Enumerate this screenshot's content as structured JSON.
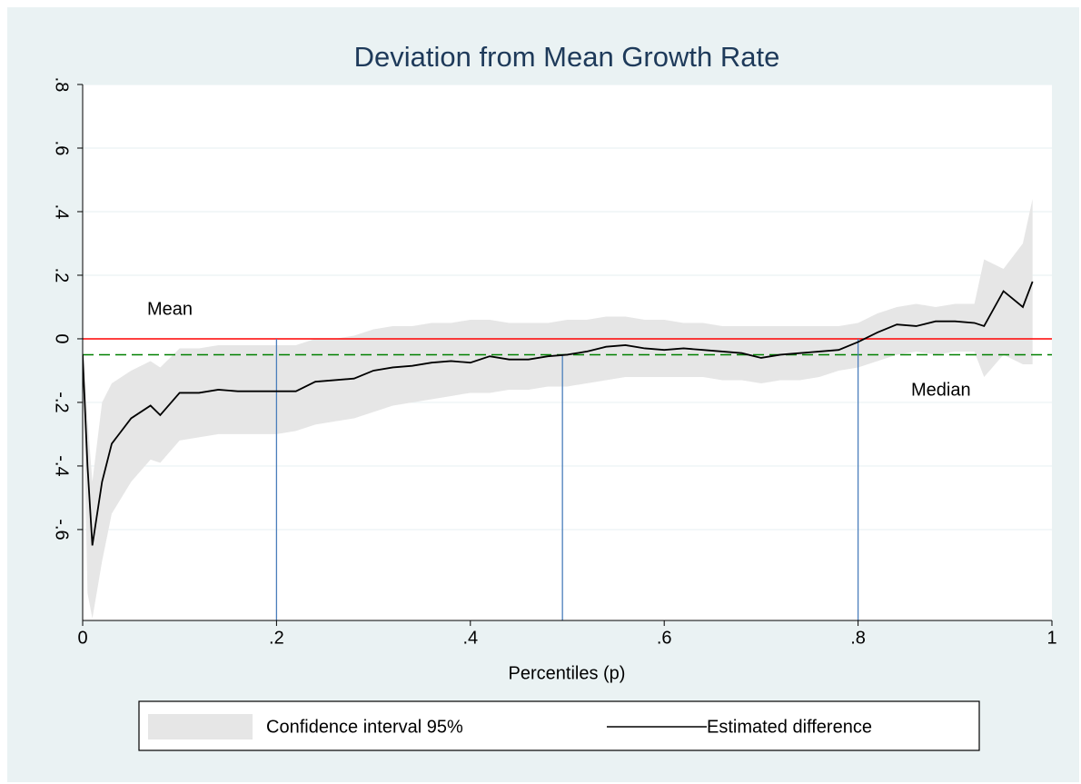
{
  "chart_data": {
    "type": "line",
    "title": "Deviation from Mean Growth Rate",
    "x_label": "Percentiles (p)",
    "xlim": [
      0,
      1
    ],
    "ylim": [
      -0.886,
      0.8
    ],
    "xticks": [
      0,
      {
        "value": 0.2,
        "label": ".2"
      },
      {
        "value": 0.4,
        "label": ".4"
      },
      {
        "value": 0.6,
        "label": ".6"
      },
      {
        "value": 0.8,
        "label": ".8"
      },
      1
    ],
    "yticks": [
      {
        "value": -0.6,
        "label": "-.6"
      },
      {
        "value": -0.4,
        "label": "-.4"
      },
      {
        "value": -0.2,
        "label": "-.2"
      },
      0,
      {
        "value": 0.2,
        "label": ".2"
      },
      {
        "value": 0.4,
        "label": ".4"
      },
      {
        "value": 0.6,
        "label": ".6"
      },
      {
        "value": 0.8,
        "label": ".8"
      }
    ],
    "grid": true,
    "x": [
      0,
      0.005,
      0.01,
      0.02,
      0.03,
      0.05,
      0.07,
      0.08,
      0.1,
      0.12,
      0.14,
      0.16,
      0.18,
      0.2,
      0.22,
      0.24,
      0.26,
      0.28,
      0.3,
      0.32,
      0.34,
      0.36,
      0.38,
      0.4,
      0.42,
      0.44,
      0.46,
      0.48,
      0.5,
      0.52,
      0.54,
      0.56,
      0.58,
      0.6,
      0.62,
      0.64,
      0.66,
      0.68,
      0.7,
      0.72,
      0.74,
      0.76,
      0.78,
      0.8,
      0.82,
      0.84,
      0.86,
      0.88,
      0.9,
      0.92,
      0.93,
      0.95,
      0.97,
      0.98
    ],
    "series": [
      {
        "name": "Confidence interval 95%",
        "type": "area",
        "color": "#e6e6e6",
        "upper": [
          -0.05,
          -0.25,
          -0.45,
          -0.2,
          -0.14,
          -0.1,
          -0.07,
          -0.09,
          -0.03,
          -0.03,
          -0.02,
          -0.02,
          -0.02,
          -0.02,
          -0.02,
          0,
          0,
          0.01,
          0.03,
          0.04,
          0.04,
          0.05,
          0.05,
          0.06,
          0.06,
          0.05,
          0.05,
          0.05,
          0.06,
          0.06,
          0.07,
          0.07,
          0.06,
          0.06,
          0.05,
          0.05,
          0.04,
          0.04,
          0.04,
          0.04,
          0.04,
          0.04,
          0.04,
          0.05,
          0.08,
          0.1,
          0.11,
          0.1,
          0.11,
          0.11,
          0.25,
          0.22,
          0.3,
          0.44
        ],
        "lower": [
          -0.05,
          -0.8,
          -0.88,
          -0.7,
          -0.55,
          -0.45,
          -0.38,
          -0.39,
          -0.32,
          -0.31,
          -0.3,
          -0.3,
          -0.3,
          -0.3,
          -0.29,
          -0.27,
          -0.26,
          -0.25,
          -0.23,
          -0.21,
          -0.2,
          -0.19,
          -0.18,
          -0.17,
          -0.17,
          -0.16,
          -0.16,
          -0.15,
          -0.15,
          -0.14,
          -0.13,
          -0.12,
          -0.12,
          -0.12,
          -0.12,
          -0.12,
          -0.13,
          -0.13,
          -0.14,
          -0.13,
          -0.13,
          -0.12,
          -0.1,
          -0.09,
          -0.07,
          -0.05,
          -0.04,
          -0.05,
          -0.04,
          -0.04,
          -0.12,
          -0.05,
          -0.08,
          -0.08
        ]
      },
      {
        "name": "Estimated difference",
        "type": "line",
        "color": "#000000",
        "values": [
          -0.05,
          -0.4,
          -0.65,
          -0.45,
          -0.33,
          -0.25,
          -0.21,
          -0.24,
          -0.17,
          -0.17,
          -0.16,
          -0.165,
          -0.165,
          -0.165,
          -0.165,
          -0.135,
          -0.13,
          -0.125,
          -0.1,
          -0.09,
          -0.085,
          -0.075,
          -0.07,
          -0.075,
          -0.055,
          -0.065,
          -0.065,
          -0.055,
          -0.05,
          -0.04,
          -0.025,
          -0.02,
          -0.03,
          -0.035,
          -0.03,
          -0.035,
          -0.04,
          -0.045,
          -0.06,
          -0.05,
          -0.045,
          -0.04,
          -0.035,
          -0.01,
          0.02,
          0.045,
          0.04,
          0.055,
          0.055,
          0.05,
          0.04,
          0.15,
          0.1,
          0.18
        ]
      }
    ],
    "hlines": [
      {
        "value": 0,
        "color": "#ff0000",
        "dashed": false,
        "label": "Mean"
      },
      {
        "value": -0.05,
        "color": "#008000",
        "dashed": true,
        "label": "Median"
      }
    ],
    "vlines": [
      {
        "x": 0.2,
        "top": 0,
        "color": "#4a7ebb"
      },
      {
        "x": 0.495,
        "top": -0.05,
        "color": "#4a7ebb"
      },
      {
        "x": 0.8,
        "top": 0,
        "color": "#4a7ebb"
      }
    ]
  }
}
